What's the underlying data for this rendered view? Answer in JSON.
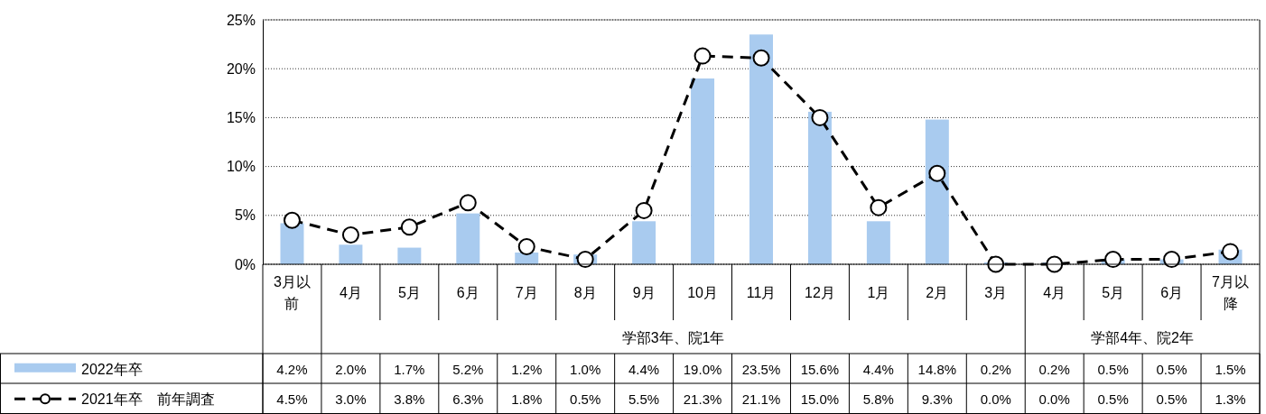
{
  "chart_data": {
    "type": "bar",
    "categories": [
      "3月以前",
      "4月",
      "5月",
      "6月",
      "7月",
      "8月",
      "9月",
      "10月",
      "11月",
      "12月",
      "1月",
      "2月",
      "3月",
      "4月",
      "5月",
      "6月",
      "7月以降"
    ],
    "series": [
      {
        "name": "2022年卒",
        "color": "#a9cbef",
        "values": [
          4.2,
          2.0,
          1.7,
          5.2,
          1.2,
          1.0,
          4.4,
          19.0,
          23.5,
          15.6,
          4.4,
          14.8,
          0.2,
          0.2,
          0.5,
          0.5,
          1.5
        ],
        "value_labels": [
          "4.2%",
          "2.0%",
          "1.7%",
          "5.2%",
          "1.2%",
          "1.0%",
          "4.4%",
          "19.0%",
          "23.5%",
          "15.6%",
          "4.4%",
          "14.8%",
          "0.2%",
          "0.2%",
          "0.5%",
          "0.5%",
          "1.5%"
        ]
      },
      {
        "name": "2021年卒　前年調査",
        "type": "line",
        "color": "#000000",
        "marker": "circle",
        "line_style": "dashed",
        "values": [
          4.5,
          3.0,
          3.8,
          6.3,
          1.8,
          0.5,
          5.5,
          21.3,
          21.1,
          15.0,
          5.8,
          9.3,
          0.0,
          0.0,
          0.5,
          0.5,
          1.3
        ],
        "value_labels": [
          "4.5%",
          "3.0%",
          "3.8%",
          "6.3%",
          "1.8%",
          "0.5%",
          "5.5%",
          "21.3%",
          "21.1%",
          "15.0%",
          "5.8%",
          "9.3%",
          "0.0%",
          "0.0%",
          "0.5%",
          "0.5%",
          "1.3%"
        ]
      }
    ],
    "ylim": [
      0,
      25
    ],
    "yticks": [
      {
        "value": 0,
        "label": "0%"
      },
      {
        "value": 5,
        "label": "5%"
      },
      {
        "value": 10,
        "label": "10%"
      },
      {
        "value": 15,
        "label": "15%"
      },
      {
        "value": 20,
        "label": "20%"
      },
      {
        "value": 25,
        "label": "25%"
      }
    ],
    "grid": "y",
    "legend": "bottom left",
    "annotations": [
      "学部3年、院1年",
      "学部4年、院2年"
    ]
  }
}
